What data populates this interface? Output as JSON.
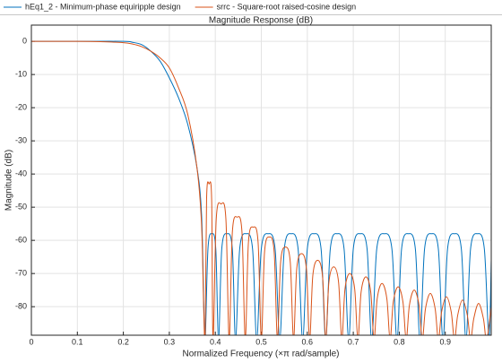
{
  "chart_data": {
    "type": "line",
    "title": "Magnitude Response (dB)",
    "x_label": "Normalized Frequency (×π rad/sample)",
    "y_label": "Magnitude (dB)",
    "xlim": [
      0,
      1
    ],
    "ylim": [
      -88.6,
      4.9
    ],
    "xticks": [
      0,
      0.1,
      0.2,
      0.3,
      0.4,
      0.5,
      0.6,
      0.7,
      0.8,
      0.9
    ],
    "yticks": [
      0,
      -10,
      -20,
      -30,
      -40,
      -50,
      -60,
      -70,
      -80
    ],
    "grid": true,
    "legend": "top",
    "series": [
      {
        "name": "hEq1_2 - Minimum-phase equiripple design",
        "color": "#0072bd",
        "x": [
          0,
          0.1,
          0.2,
          0.22,
          0.24,
          0.26,
          0.28,
          0.3,
          0.32,
          0.34,
          0.36,
          0.37,
          0.375,
          0.378,
          0.384,
          0.3925,
          0.401,
          0.407,
          0.414,
          0.4255,
          0.437,
          0.444,
          0.453,
          0.467,
          0.481,
          0.49,
          0.5,
          0.515,
          0.53,
          0.54,
          0.55,
          0.565,
          0.58,
          0.59,
          0.6,
          0.615,
          0.63,
          0.64,
          0.65,
          0.665,
          0.68,
          0.69,
          0.7,
          0.715,
          0.73,
          0.74,
          0.751,
          0.7675,
          0.784,
          0.795,
          0.805,
          0.82,
          0.835,
          0.845,
          0.855,
          0.87,
          0.885,
          0.895,
          0.905,
          0.92,
          0.935,
          0.945,
          0.955,
          0.97,
          0.985,
          0.995,
          1
        ],
        "values": [
          0,
          0,
          0,
          -0.3,
          -1,
          -3,
          -6,
          -11,
          -17,
          -25,
          -38,
          -52,
          -80,
          -90,
          -62.6,
          -58,
          -62.6,
          -90,
          -62.6,
          -58,
          -62.6,
          -90,
          -62.6,
          -58,
          -62.6,
          -90,
          -62.6,
          -58,
          -62.6,
          -90,
          -62.6,
          -58,
          -62.6,
          -90,
          -62.6,
          -58,
          -62.6,
          -90,
          -62.6,
          -58,
          -62.6,
          -90,
          -62.6,
          -58,
          -62.6,
          -90,
          -62.6,
          -58,
          -62.6,
          -90,
          -62.6,
          -58,
          -62.6,
          -90,
          -62.6,
          -58,
          -62.6,
          -90,
          -62.6,
          -58,
          -62.6,
          -90,
          -62.6,
          -58,
          -62.6,
          -90,
          -66
        ]
      },
      {
        "name": "srrc - Square-root raised-cosine design",
        "color": "#d95319",
        "x": [
          0,
          0.1,
          0.15,
          0.2,
          0.22,
          0.24,
          0.26,
          0.28,
          0.3,
          0.32,
          0.34,
          0.36,
          0.37,
          0.375,
          0.378,
          0.381,
          0.3865,
          0.392,
          0.395,
          0.402,
          0.4125,
          0.423,
          0.43,
          0.437,
          0.4475,
          0.458,
          0.465,
          0.472,
          0.4825,
          0.493,
          0.5,
          0.507,
          0.5175,
          0.528,
          0.535,
          0.542,
          0.5525,
          0.563,
          0.57,
          0.577,
          0.5875,
          0.598,
          0.605,
          0.612,
          0.6225,
          0.633,
          0.64,
          0.647,
          0.6575,
          0.668,
          0.675,
          0.682,
          0.6925,
          0.703,
          0.71,
          0.717,
          0.7275,
          0.738,
          0.745,
          0.752,
          0.7625,
          0.773,
          0.78,
          0.787,
          0.7975,
          0.808,
          0.815,
          0.822,
          0.8325,
          0.843,
          0.85,
          0.857,
          0.8675,
          0.878,
          0.885,
          0.892,
          0.9025,
          0.913,
          0.92,
          0.927,
          0.9375,
          0.948,
          0.955,
          0.962,
          0.9725,
          0.983,
          0.99,
          1
        ],
        "values": [
          0,
          0,
          -0.1,
          -0.4,
          -0.8,
          -1.6,
          -3,
          -5,
          -8,
          -14,
          -22,
          -38,
          -55,
          -82,
          -90,
          -47.6,
          -43,
          -47.6,
          -90,
          -53.6,
          -49,
          -53.6,
          -90,
          -57.6,
          -53,
          -57.6,
          -90,
          -60.6,
          -56,
          -60.6,
          -90,
          -63.6,
          -59,
          -63.6,
          -90,
          -66.6,
          -62,
          -66.6,
          -90,
          -68.6,
          -64,
          -68.6,
          -90,
          -70.6,
          -66,
          -70.6,
          -90,
          -72.6,
          -68,
          -72.6,
          -90,
          -74.6,
          -70,
          -74.6,
          -90,
          -75.6,
          -71,
          -75.6,
          -90,
          -77.6,
          -73,
          -77.6,
          -90,
          -78.6,
          -74,
          -78.6,
          -90,
          -79.6,
          -75,
          -79.6,
          -90,
          -80.6,
          -76,
          -80.6,
          -90,
          -81.6,
          -77,
          -81.6,
          -90,
          -82.6,
          -78,
          -82.6,
          -90,
          -83.6,
          -79,
          -83.6,
          -90,
          -80
        ]
      }
    ]
  }
}
